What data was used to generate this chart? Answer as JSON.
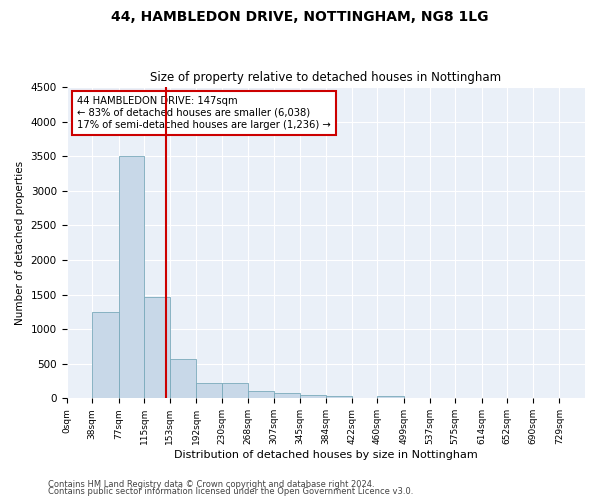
{
  "title": "44, HAMBLEDON DRIVE, NOTTINGHAM, NG8 1LG",
  "subtitle": "Size of property relative to detached houses in Nottingham",
  "xlabel": "Distribution of detached houses by size in Nottingham",
  "ylabel": "Number of detached properties",
  "bar_color": "#c8d8e8",
  "bar_edge_color": "#7aaabb",
  "vline_color": "#cc0000",
  "vline_x": 147,
  "annotation_title": "44 HAMBLEDON DRIVE: 147sqm",
  "annotation_line1": "← 83% of detached houses are smaller (6,038)",
  "annotation_line2": "17% of semi-detached houses are larger (1,236) →",
  "annotation_box_color": "#cc0000",
  "footnote1": "Contains HM Land Registry data © Crown copyright and database right 2024.",
  "footnote2": "Contains public sector information licensed under the Open Government Licence v3.0.",
  "bin_edges": [
    0,
    38,
    77,
    115,
    153,
    192,
    230,
    268,
    307,
    345,
    384,
    422,
    460,
    499,
    537,
    575,
    614,
    652,
    690,
    729,
    767
  ],
  "bar_heights": [
    5,
    1250,
    3500,
    1470,
    570,
    220,
    220,
    110,
    80,
    55,
    40,
    0,
    40,
    0,
    0,
    0,
    0,
    0,
    0,
    0
  ],
  "ylim": [
    0,
    4500
  ],
  "yticks": [
    0,
    500,
    1000,
    1500,
    2000,
    2500,
    3000,
    3500,
    4000,
    4500
  ],
  "background_color": "#ffffff",
  "plot_bg_color": "#eaf0f8",
  "title_fontsize": 10,
  "subtitle_fontsize": 8.5
}
